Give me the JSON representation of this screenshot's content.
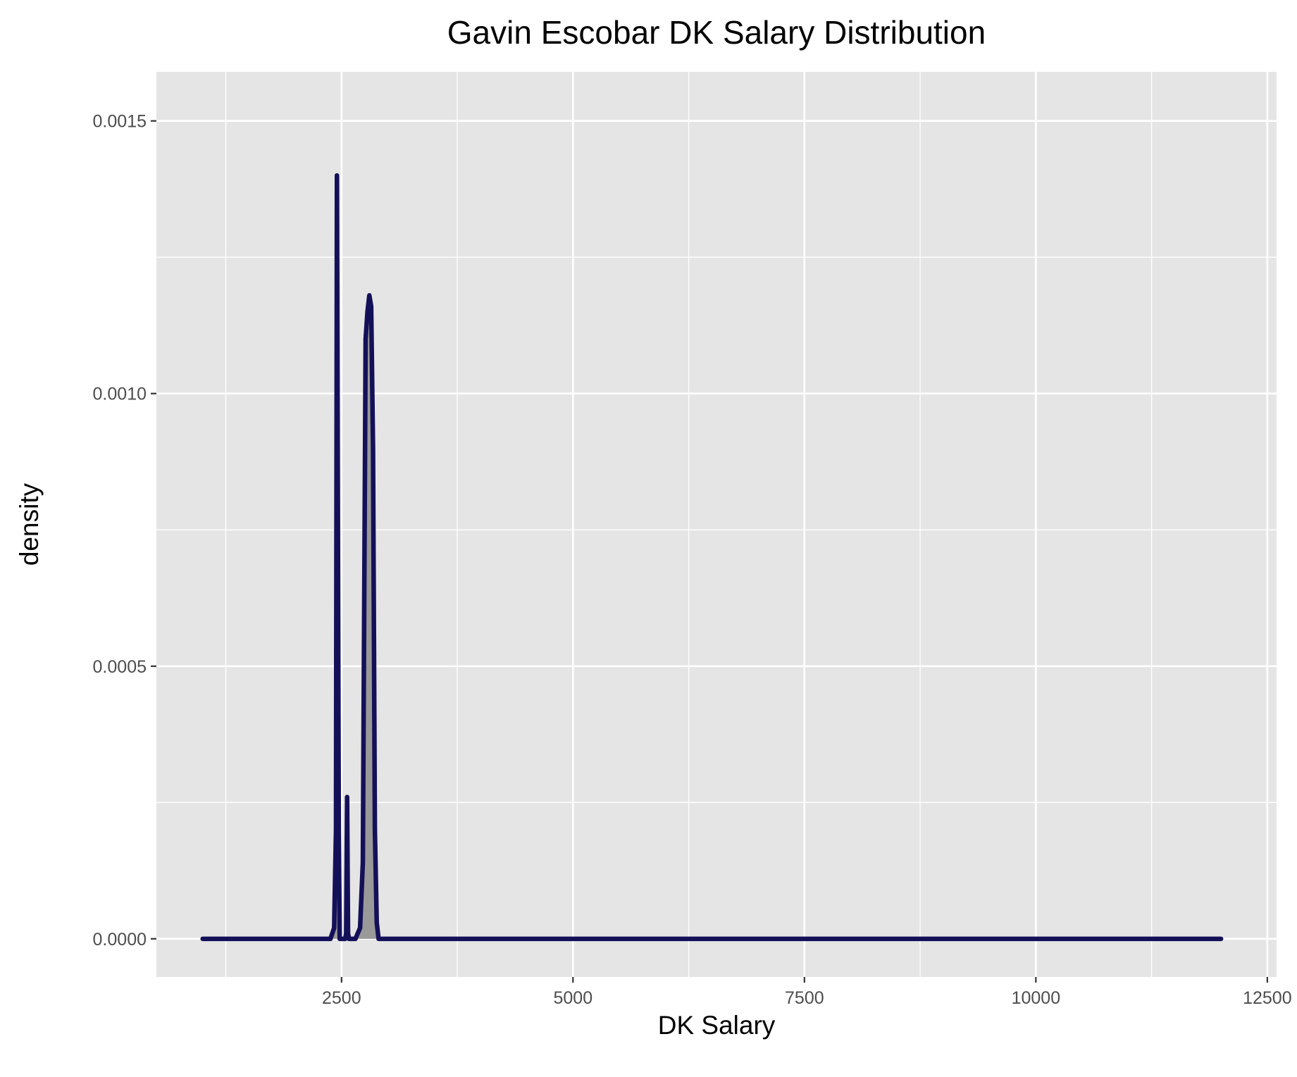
{
  "colors": {
    "panel_background": "#e5e5e5",
    "grid_line": "#ffffff",
    "density_line": "#141058",
    "density_fill": "#999999",
    "tick_text": "#4d4d4d",
    "tick_mark": "#333333"
  },
  "chart_data": {
    "type": "area",
    "title": "Gavin Escobar DK Salary Distribution",
    "xlabel": "DK Salary",
    "ylabel": "density",
    "xlim": [
      500,
      12600
    ],
    "ylim": [
      -7e-05,
      0.00159
    ],
    "x_ticks": [
      2500,
      5000,
      7500,
      10000,
      12500
    ],
    "x_tick_labels": [
      "2500",
      "5000",
      "7500",
      "10000",
      "12500"
    ],
    "y_ticks": [
      0,
      0.0005,
      0.001,
      0.0015
    ],
    "y_tick_labels": [
      "0.0000",
      "0.0005",
      "0.0010",
      "0.0015"
    ],
    "grid": true,
    "legend": "none",
    "series": [
      {
        "x": [
          1000,
          2380,
          2420,
          2440,
          2450,
          2470,
          2480,
          2540,
          2550,
          2560,
          2570,
          2580,
          2590,
          2650,
          2700,
          2730,
          2760,
          2780,
          2800,
          2820,
          2840,
          2860,
          2880,
          2900,
          2920,
          2950,
          12000
        ],
        "y": [
          0,
          0,
          2e-05,
          0.0002,
          0.0014,
          0.0002,
          0,
          0,
          1e-05,
          0.00026,
          1e-05,
          0,
          0,
          0,
          2e-05,
          0.00014,
          0.0011,
          0.00115,
          0.00118,
          0.00116,
          0.0009,
          0.0002,
          3e-05,
          0,
          0,
          0,
          0
        ]
      }
    ]
  }
}
